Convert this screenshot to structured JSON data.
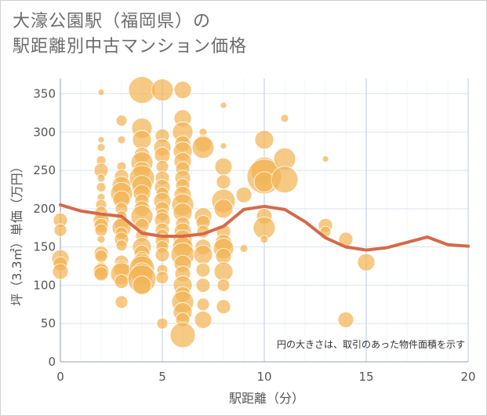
{
  "title": {
    "line1": "大濠公園駅（福岡県）の",
    "line2": "駅距離別中古マンション価格"
  },
  "note": "円の大きさは、取引のあった物件面積を示す",
  "colors": {
    "bubble": "#f3b454",
    "bubble_stroke": "#ffffff",
    "line": "#d36a4a",
    "grid": "#dde3ee",
    "grid_major": "#c7d3e6"
  },
  "chart_data": {
    "type": "scatter",
    "xlabel": "駅距離（分）",
    "ylabel": "坪（3.3㎡）単価（万円）",
    "xlim": [
      0,
      20
    ],
    "ylim": [
      0,
      370
    ],
    "x_ticks": [
      0,
      5,
      10,
      15,
      20
    ],
    "y_ticks": [
      0,
      50,
      100,
      150,
      200,
      250,
      300,
      350
    ],
    "trend_line": {
      "x": [
        0,
        1,
        2,
        3,
        4,
        5,
        6,
        7,
        8,
        9,
        10,
        11,
        12,
        13,
        14,
        15,
        16,
        17,
        18,
        19,
        20
      ],
      "y": [
        205,
        197,
        193,
        190,
        168,
        164,
        164,
        167,
        177,
        199,
        203,
        199,
        183,
        162,
        150,
        146,
        149,
        156,
        163,
        153,
        151
      ]
    },
    "points": [
      {
        "x": 0,
        "y": 185,
        "s": 9
      },
      {
        "x": 0,
        "y": 172,
        "s": 8
      },
      {
        "x": 0,
        "y": 135,
        "s": 11
      },
      {
        "x": 0,
        "y": 128,
        "s": 9
      },
      {
        "x": 0,
        "y": 118,
        "s": 10
      },
      {
        "x": 2,
        "y": 352,
        "s": 4
      },
      {
        "x": 2,
        "y": 290,
        "s": 4
      },
      {
        "x": 2,
        "y": 280,
        "s": 5
      },
      {
        "x": 2,
        "y": 263,
        "s": 6
      },
      {
        "x": 2,
        "y": 250,
        "s": 9
      },
      {
        "x": 2,
        "y": 240,
        "s": 5
      },
      {
        "x": 2,
        "y": 228,
        "s": 6
      },
      {
        "x": 2,
        "y": 215,
        "s": 5
      },
      {
        "x": 2,
        "y": 205,
        "s": 7
      },
      {
        "x": 2,
        "y": 195,
        "s": 8
      },
      {
        "x": 2,
        "y": 185,
        "s": 10
      },
      {
        "x": 2,
        "y": 178,
        "s": 9
      },
      {
        "x": 2,
        "y": 172,
        "s": 8
      },
      {
        "x": 2,
        "y": 160,
        "s": 5
      },
      {
        "x": 2,
        "y": 142,
        "s": 9
      },
      {
        "x": 2,
        "y": 138,
        "s": 8
      },
      {
        "x": 2,
        "y": 122,
        "s": 8
      },
      {
        "x": 2,
        "y": 118,
        "s": 10
      },
      {
        "x": 2,
        "y": 115,
        "s": 9
      },
      {
        "x": 3,
        "y": 315,
        "s": 7
      },
      {
        "x": 3,
        "y": 290,
        "s": 5
      },
      {
        "x": 3,
        "y": 255,
        "s": 6
      },
      {
        "x": 3,
        "y": 242,
        "s": 9
      },
      {
        "x": 3,
        "y": 230,
        "s": 12
      },
      {
        "x": 3,
        "y": 220,
        "s": 14
      },
      {
        "x": 3,
        "y": 212,
        "s": 11
      },
      {
        "x": 3,
        "y": 200,
        "s": 8
      },
      {
        "x": 3,
        "y": 190,
        "s": 7
      },
      {
        "x": 3,
        "y": 180,
        "s": 9
      },
      {
        "x": 3,
        "y": 175,
        "s": 12
      },
      {
        "x": 3,
        "y": 168,
        "s": 8
      },
      {
        "x": 3,
        "y": 160,
        "s": 9
      },
      {
        "x": 3,
        "y": 152,
        "s": 7
      },
      {
        "x": 3,
        "y": 130,
        "s": 9
      },
      {
        "x": 3,
        "y": 122,
        "s": 10
      },
      {
        "x": 3,
        "y": 115,
        "s": 14
      },
      {
        "x": 3,
        "y": 105,
        "s": 9
      },
      {
        "x": 3,
        "y": 78,
        "s": 8
      },
      {
        "x": 4,
        "y": 355,
        "s": 17
      },
      {
        "x": 4,
        "y": 305,
        "s": 13
      },
      {
        "x": 4,
        "y": 290,
        "s": 12
      },
      {
        "x": 4,
        "y": 270,
        "s": 10
      },
      {
        "x": 4,
        "y": 260,
        "s": 14
      },
      {
        "x": 4,
        "y": 250,
        "s": 11
      },
      {
        "x": 4,
        "y": 240,
        "s": 16
      },
      {
        "x": 4,
        "y": 230,
        "s": 13
      },
      {
        "x": 4,
        "y": 220,
        "s": 11
      },
      {
        "x": 4,
        "y": 210,
        "s": 9
      },
      {
        "x": 4,
        "y": 200,
        "s": 10
      },
      {
        "x": 4,
        "y": 190,
        "s": 14
      },
      {
        "x": 4,
        "y": 178,
        "s": 9
      },
      {
        "x": 4,
        "y": 165,
        "s": 8
      },
      {
        "x": 4,
        "y": 150,
        "s": 12
      },
      {
        "x": 4,
        "y": 142,
        "s": 10
      },
      {
        "x": 4,
        "y": 135,
        "s": 9
      },
      {
        "x": 4,
        "y": 128,
        "s": 13
      },
      {
        "x": 4,
        "y": 122,
        "s": 16
      },
      {
        "x": 4,
        "y": 115,
        "s": 14
      },
      {
        "x": 4,
        "y": 108,
        "s": 18
      },
      {
        "x": 4,
        "y": 100,
        "s": 12
      },
      {
        "x": 5,
        "y": 355,
        "s": 14
      },
      {
        "x": 5,
        "y": 295,
        "s": 9
      },
      {
        "x": 5,
        "y": 280,
        "s": 11
      },
      {
        "x": 5,
        "y": 270,
        "s": 10
      },
      {
        "x": 5,
        "y": 255,
        "s": 8
      },
      {
        "x": 5,
        "y": 240,
        "s": 9
      },
      {
        "x": 5,
        "y": 228,
        "s": 10
      },
      {
        "x": 5,
        "y": 220,
        "s": 8
      },
      {
        "x": 5,
        "y": 210,
        "s": 11
      },
      {
        "x": 5,
        "y": 200,
        "s": 9
      },
      {
        "x": 5,
        "y": 192,
        "s": 8
      },
      {
        "x": 5,
        "y": 185,
        "s": 10
      },
      {
        "x": 5,
        "y": 172,
        "s": 9
      },
      {
        "x": 5,
        "y": 165,
        "s": 8
      },
      {
        "x": 5,
        "y": 158,
        "s": 9
      },
      {
        "x": 5,
        "y": 150,
        "s": 8
      },
      {
        "x": 5,
        "y": 140,
        "s": 9
      },
      {
        "x": 5,
        "y": 120,
        "s": 7
      },
      {
        "x": 5,
        "y": 110,
        "s": 8
      },
      {
        "x": 5,
        "y": 50,
        "s": 7
      },
      {
        "x": 6,
        "y": 355,
        "s": 11
      },
      {
        "x": 6,
        "y": 318,
        "s": 11
      },
      {
        "x": 6,
        "y": 300,
        "s": 13
      },
      {
        "x": 6,
        "y": 285,
        "s": 10
      },
      {
        "x": 6,
        "y": 275,
        "s": 12
      },
      {
        "x": 6,
        "y": 262,
        "s": 11
      },
      {
        "x": 6,
        "y": 252,
        "s": 9
      },
      {
        "x": 6,
        "y": 240,
        "s": 10
      },
      {
        "x": 6,
        "y": 230,
        "s": 9
      },
      {
        "x": 6,
        "y": 218,
        "s": 11
      },
      {
        "x": 6,
        "y": 205,
        "s": 14
      },
      {
        "x": 6,
        "y": 195,
        "s": 12
      },
      {
        "x": 6,
        "y": 180,
        "s": 9
      },
      {
        "x": 6,
        "y": 170,
        "s": 11
      },
      {
        "x": 6,
        "y": 160,
        "s": 12
      },
      {
        "x": 6,
        "y": 150,
        "s": 13
      },
      {
        "x": 6,
        "y": 140,
        "s": 15
      },
      {
        "x": 6,
        "y": 128,
        "s": 11
      },
      {
        "x": 6,
        "y": 115,
        "s": 10
      },
      {
        "x": 6,
        "y": 100,
        "s": 12
      },
      {
        "x": 6,
        "y": 88,
        "s": 10
      },
      {
        "x": 6,
        "y": 78,
        "s": 14
      },
      {
        "x": 6,
        "y": 65,
        "s": 12
      },
      {
        "x": 6,
        "y": 55,
        "s": 9
      },
      {
        "x": 6,
        "y": 35,
        "s": 16
      },
      {
        "x": 7,
        "y": 300,
        "s": 5
      },
      {
        "x": 7,
        "y": 285,
        "s": 11
      },
      {
        "x": 7,
        "y": 280,
        "s": 14
      },
      {
        "x": 7,
        "y": 190,
        "s": 11
      },
      {
        "x": 7,
        "y": 182,
        "s": 9
      },
      {
        "x": 7,
        "y": 170,
        "s": 8
      },
      {
        "x": 7,
        "y": 150,
        "s": 10
      },
      {
        "x": 7,
        "y": 140,
        "s": 12
      },
      {
        "x": 7,
        "y": 120,
        "s": 9
      },
      {
        "x": 7,
        "y": 100,
        "s": 9
      },
      {
        "x": 7,
        "y": 75,
        "s": 8
      },
      {
        "x": 7,
        "y": 55,
        "s": 11
      },
      {
        "x": 8,
        "y": 335,
        "s": 4
      },
      {
        "x": 8,
        "y": 282,
        "s": 4
      },
      {
        "x": 8,
        "y": 255,
        "s": 11
      },
      {
        "x": 8,
        "y": 235,
        "s": 9
      },
      {
        "x": 8,
        "y": 210,
        "s": 15
      },
      {
        "x": 8,
        "y": 200,
        "s": 12
      },
      {
        "x": 8,
        "y": 170,
        "s": 9
      },
      {
        "x": 8,
        "y": 155,
        "s": 11
      },
      {
        "x": 8,
        "y": 148,
        "s": 13
      },
      {
        "x": 8,
        "y": 138,
        "s": 10
      },
      {
        "x": 8,
        "y": 118,
        "s": 12
      },
      {
        "x": 8,
        "y": 100,
        "s": 8
      },
      {
        "x": 8,
        "y": 72,
        "s": 9
      },
      {
        "x": 9,
        "y": 218,
        "s": 10
      },
      {
        "x": 9,
        "y": 148,
        "s": 5
      },
      {
        "x": 10,
        "y": 290,
        "s": 12
      },
      {
        "x": 10,
        "y": 250,
        "s": 17
      },
      {
        "x": 10,
        "y": 242,
        "s": 22
      },
      {
        "x": 10,
        "y": 235,
        "s": 13
      },
      {
        "x": 10,
        "y": 190,
        "s": 10
      },
      {
        "x": 10,
        "y": 175,
        "s": 14
      },
      {
        "x": 10,
        "y": 160,
        "s": 5
      },
      {
        "x": 11,
        "y": 318,
        "s": 5
      },
      {
        "x": 11,
        "y": 265,
        "s": 14
      },
      {
        "x": 11,
        "y": 238,
        "s": 17
      },
      {
        "x": 13,
        "y": 265,
        "s": 4
      },
      {
        "x": 13,
        "y": 178,
        "s": 9
      },
      {
        "x": 13,
        "y": 170,
        "s": 7
      },
      {
        "x": 14,
        "y": 160,
        "s": 9
      },
      {
        "x": 14,
        "y": 55,
        "s": 10
      },
      {
        "x": 15,
        "y": 130,
        "s": 11
      }
    ]
  }
}
